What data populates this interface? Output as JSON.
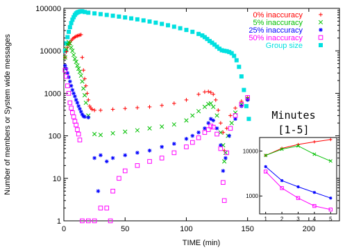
{
  "chart_data": [
    {
      "type": "scatter",
      "title": "",
      "xlabel": "TIME (min)",
      "ylabel": "Number of members or System wide messages",
      "xlim": [
        0,
        225
      ],
      "ylim": [
        1,
        100000
      ],
      "y_scale": "log",
      "x_ticks": [
        0,
        50,
        100,
        150,
        200
      ],
      "y_ticks": [
        1,
        10,
        100,
        1000,
        10000,
        100000
      ],
      "y_tick_labels": [
        "1",
        "10",
        "100",
        "1000",
        "10000",
        "100000"
      ],
      "legend_position": "top-right",
      "grid": false,
      "series": [
        {
          "name": "0% inaccuracy",
          "marker": "plus",
          "color": "#ff0000",
          "points": [
            [
              1,
              7000
            ],
            [
              2,
              9500
            ],
            [
              3,
              12000
            ],
            [
              4,
              14000
            ],
            [
              5,
              16000
            ],
            [
              6,
              17500
            ],
            [
              7,
              19000
            ],
            [
              8,
              20000
            ],
            [
              9,
              21000
            ],
            [
              10,
              22000
            ],
            [
              11,
              22500
            ],
            [
              12,
              23000
            ],
            [
              13,
              23500
            ],
            [
              14,
              24000
            ],
            [
              15,
              7000
            ],
            [
              16,
              3500
            ],
            [
              17,
              2200
            ],
            [
              18,
              1500
            ],
            [
              19,
              1000
            ],
            [
              20,
              700
            ],
            [
              21,
              500
            ],
            [
              22,
              450
            ],
            [
              23,
              420
            ],
            [
              25,
              400
            ],
            [
              30,
              400
            ],
            [
              40,
              420
            ],
            [
              50,
              440
            ],
            [
              60,
              460
            ],
            [
              70,
              480
            ],
            [
              80,
              520
            ],
            [
              90,
              580
            ],
            [
              100,
              700
            ],
            [
              110,
              950
            ],
            [
              115,
              1080
            ],
            [
              118,
              1100
            ],
            [
              120,
              1050
            ],
            [
              122,
              950
            ],
            [
              124,
              700
            ],
            [
              126,
              400
            ],
            [
              128,
              200
            ],
            [
              130,
              120
            ],
            [
              131,
              45
            ],
            [
              133,
              150
            ],
            [
              136,
              300
            ],
            [
              140,
              450
            ],
            [
              145,
              650
            ],
            [
              150,
              800
            ]
          ]
        },
        {
          "name": "5% inaccuracy",
          "marker": "cross",
          "color": "#00c000",
          "points": [
            [
              1,
              7000
            ],
            [
              2,
              11000
            ],
            [
              3,
              14000
            ],
            [
              4,
              16000
            ],
            [
              5,
              15000
            ],
            [
              6,
              12000
            ],
            [
              7,
              10000
            ],
            [
              8,
              8000
            ],
            [
              9,
              6500
            ],
            [
              10,
              5500
            ],
            [
              11,
              4500
            ],
            [
              12,
              3800
            ],
            [
              13,
              3200
            ],
            [
              14,
              2600
            ],
            [
              15,
              1900
            ],
            [
              16,
              1300
            ],
            [
              17,
              900
            ],
            [
              18,
              600
            ],
            [
              20,
              300
            ],
            [
              25,
              110
            ],
            [
              30,
              105
            ],
            [
              40,
              115
            ],
            [
              50,
              125
            ],
            [
              60,
              135
            ],
            [
              70,
              150
            ],
            [
              80,
              165
            ],
            [
              90,
              185
            ],
            [
              100,
              230
            ],
            [
              105,
              300
            ],
            [
              110,
              380
            ],
            [
              115,
              480
            ],
            [
              118,
              560
            ],
            [
              120,
              580
            ],
            [
              122,
              480
            ],
            [
              125,
              300
            ],
            [
              128,
              120
            ],
            [
              130,
              60
            ],
            [
              131,
              25
            ],
            [
              132,
              40
            ],
            [
              134,
              100
            ],
            [
              137,
              200
            ],
            [
              140,
              350
            ],
            [
              145,
              550
            ],
            [
              150,
              750
            ]
          ]
        },
        {
          "name": "25% inaccuracy",
          "marker": "star",
          "color": "#0000ff",
          "points": [
            [
              1,
              4500
            ],
            [
              2,
              3800
            ],
            [
              3,
              3000
            ],
            [
              4,
              2400
            ],
            [
              5,
              1900
            ],
            [
              6,
              1500
            ],
            [
              7,
              1200
            ],
            [
              8,
              1000
            ],
            [
              9,
              850
            ],
            [
              10,
              700
            ],
            [
              11,
              600
            ],
            [
              12,
              500
            ],
            [
              13,
              430
            ],
            [
              14,
              370
            ],
            [
              15,
              320
            ],
            [
              16,
              290
            ],
            [
              17,
              280
            ],
            [
              20,
              270
            ],
            [
              25,
              30
            ],
            [
              28,
              5
            ],
            [
              30,
              35
            ],
            [
              35,
              25
            ],
            [
              40,
              30
            ],
            [
              50,
              35
            ],
            [
              60,
              40
            ],
            [
              70,
              45
            ],
            [
              80,
              55
            ],
            [
              90,
              65
            ],
            [
              100,
              85
            ],
            [
              105,
              100
            ],
            [
              110,
              120
            ],
            [
              115,
              150
            ],
            [
              118,
              200
            ],
            [
              120,
              250
            ],
            [
              122,
              230
            ],
            [
              125,
              150
            ],
            [
              128,
              60
            ],
            [
              130,
              15
            ],
            [
              132,
              30
            ],
            [
              135,
              100
            ],
            [
              140,
              250
            ],
            [
              145,
              500
            ],
            [
              150,
              700
            ]
          ]
        },
        {
          "name": "50% inaccuracy",
          "marker": "square",
          "color": "#ff00ff",
          "points": [
            [
              1,
              3500
            ],
            [
              2,
              2500
            ],
            [
              3,
              1500
            ],
            [
              4,
              1000
            ],
            [
              5,
              600
            ],
            [
              6,
              450
            ],
            [
              7,
              350
            ],
            [
              8,
              280
            ],
            [
              9,
              220
            ],
            [
              10,
              180
            ],
            [
              11,
              140
            ],
            [
              12,
              110
            ],
            [
              13,
              80
            ],
            [
              15,
              1
            ],
            [
              20,
              1
            ],
            [
              25,
              1
            ],
            [
              30,
              2
            ],
            [
              35,
              2
            ],
            [
              38,
              1
            ],
            [
              40,
              5
            ],
            [
              45,
              10
            ],
            [
              50,
              15
            ],
            [
              60,
              20
            ],
            [
              70,
              25
            ],
            [
              80,
              30
            ],
            [
              90,
              40
            ],
            [
              100,
              55
            ],
            [
              105,
              70
            ],
            [
              110,
              90
            ],
            [
              115,
              120
            ],
            [
              118,
              140
            ],
            [
              120,
              170
            ],
            [
              122,
              160
            ],
            [
              125,
              110
            ],
            [
              128,
              50
            ],
            [
              130,
              8
            ],
            [
              131,
              3
            ],
            [
              133,
              40
            ],
            [
              136,
              150
            ],
            [
              140,
              300
            ],
            [
              145,
              550
            ],
            [
              150,
              800
            ]
          ]
        },
        {
          "name": "Group size",
          "marker": "filled-square",
          "color": "#00e0e0",
          "points": [
            [
              1,
              10000
            ],
            [
              2,
              15000
            ],
            [
              3,
              21000
            ],
            [
              4,
              28000
            ],
            [
              5,
              36000
            ],
            [
              6,
              45000
            ],
            [
              7,
              54000
            ],
            [
              8,
              62000
            ],
            [
              9,
              70000
            ],
            [
              10,
              76000
            ],
            [
              11,
              80000
            ],
            [
              12,
              82000
            ],
            [
              13,
              84000
            ],
            [
              14,
              85000
            ],
            [
              15,
              85000
            ],
            [
              17,
              82000
            ],
            [
              20,
              79000
            ],
            [
              25,
              76000
            ],
            [
              30,
              73000
            ],
            [
              35,
              70000
            ],
            [
              40,
              67000
            ],
            [
              45,
              64000
            ],
            [
              50,
              61000
            ],
            [
              55,
              58000
            ],
            [
              60,
              55000
            ],
            [
              65,
              52000
            ],
            [
              70,
              49000
            ],
            [
              75,
              46000
            ],
            [
              80,
              43000
            ],
            [
              85,
              40000
            ],
            [
              90,
              37000
            ],
            [
              95,
              34000
            ],
            [
              100,
              31000
            ],
            [
              105,
              28000
            ],
            [
              110,
              25000
            ],
            [
              113,
              23000
            ],
            [
              115,
              21000
            ],
            [
              117,
              19000
            ],
            [
              119,
              17000
            ],
            [
              121,
              15500
            ],
            [
              123,
              14000
            ],
            [
              125,
              12500
            ],
            [
              127,
              11200
            ],
            [
              129,
              10300
            ],
            [
              131,
              10000
            ],
            [
              133,
              9800
            ],
            [
              135,
              9400
            ],
            [
              137,
              8800
            ],
            [
              139,
              7600
            ],
            [
              141,
              6000
            ],
            [
              143,
              4200
            ],
            [
              145,
              2500
            ],
            [
              147,
              1200
            ],
            [
              149,
              500
            ],
            [
              151,
              250
            ]
          ]
        }
      ]
    },
    {
      "type": "line",
      "title": "Minutes\n[1-5]",
      "title_lines": [
        "Minutes",
        "[1-5]"
      ],
      "x": [
        1,
        2,
        3,
        4,
        5
      ],
      "xlim": [
        0.8,
        5.2
      ],
      "ylim": [
        400,
        20000
      ],
      "y_scale": "log",
      "x_ticks": [
        1,
        2,
        3,
        4,
        5
      ],
      "y_ticks": [
        1000,
        10000
      ],
      "y_tick_labels": [
        "1000",
        "10000"
      ],
      "series": [
        {
          "marker": "plus",
          "color": "#ff0000",
          "values": [
            8000,
            11500,
            14000,
            16000,
            18000
          ]
        },
        {
          "marker": "cross",
          "color": "#00c000",
          "values": [
            8000,
            11000,
            13000,
            8500,
            6000
          ]
        },
        {
          "marker": "star",
          "color": "#0000ff",
          "values": [
            4500,
            2200,
            1600,
            1200,
            900
          ]
        },
        {
          "marker": "square",
          "color": "#ff00ff",
          "values": [
            3500,
            1500,
            900,
            600,
            500
          ]
        }
      ]
    }
  ]
}
